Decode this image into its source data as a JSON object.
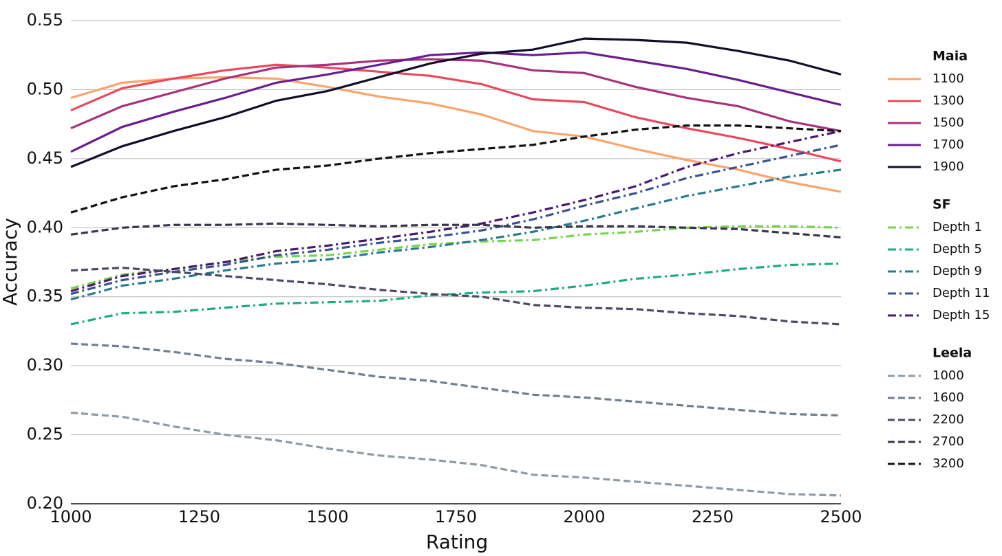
{
  "chart_data": {
    "type": "line",
    "x_label": "Rating",
    "y_label": "Accuracy",
    "x": [
      1000,
      1100,
      1200,
      1300,
      1400,
      1500,
      1600,
      1700,
      1800,
      1900,
      2000,
      2100,
      2200,
      2300,
      2400,
      2500
    ],
    "xlim": [
      1000,
      2500
    ],
    "xticks": [
      1000,
      1250,
      1500,
      1750,
      2000,
      2250,
      2500
    ],
    "ylim": [
      0.2,
      0.55
    ],
    "yticks": [
      {
        "value": 0.2,
        "label": "0.20"
      },
      0.25,
      {
        "value": 0.3,
        "label": "0.30"
      },
      0.35,
      {
        "value": 0.4,
        "label": "0.40"
      },
      0.45,
      {
        "value": 0.5,
        "label": "0.50"
      },
      0.55
    ],
    "grid": true,
    "legend": "right",
    "series_groups": [
      {
        "name": "Maia",
        "dash": "solid",
        "series": [
          {
            "name": "1100",
            "color": "#fca46c",
            "values": [
              0.494,
              0.505,
              0.508,
              0.509,
              0.508,
              0.502,
              0.495,
              0.49,
              0.482,
              0.47,
              0.466,
              0.457,
              0.449,
              0.442,
              0.433,
              0.426
            ]
          },
          {
            "name": "1300",
            "color": "#e9495e",
            "values": [
              0.485,
              0.501,
              0.508,
              0.514,
              0.518,
              0.516,
              0.513,
              0.51,
              0.504,
              0.493,
              0.491,
              0.48,
              0.472,
              0.465,
              0.457,
              0.448
            ]
          },
          {
            "name": "1500",
            "color": "#a7327e",
            "values": [
              0.472,
              0.488,
              0.498,
              0.508,
              0.516,
              0.518,
              0.521,
              0.522,
              0.521,
              0.514,
              0.512,
              0.502,
              0.494,
              0.488,
              0.477,
              0.47
            ]
          },
          {
            "name": "1700",
            "color": "#6a1d8e",
            "values": [
              0.455,
              0.473,
              0.484,
              0.494,
              0.505,
              0.511,
              0.518,
              0.525,
              0.527,
              0.525,
              0.527,
              0.521,
              0.515,
              0.507,
              0.498,
              0.489
            ]
          },
          {
            "name": "1900",
            "color": "#120d2b",
            "values": [
              0.444,
              0.459,
              0.47,
              0.48,
              0.492,
              0.499,
              0.509,
              0.519,
              0.526,
              0.529,
              0.537,
              0.536,
              0.534,
              0.528,
              0.521,
              0.511
            ]
          }
        ]
      },
      {
        "name": "SF",
        "dash": "dashdot",
        "series": [
          {
            "name": "Depth 1",
            "color": "#7ad151",
            "values": [
              0.356,
              0.366,
              0.37,
              0.375,
              0.379,
              0.38,
              0.384,
              0.388,
              0.39,
              0.391,
              0.395,
              0.397,
              0.4,
              0.401,
              0.401,
              0.4
            ]
          },
          {
            "name": "Depth 5",
            "color": "#22a884",
            "values": [
              0.33,
              0.338,
              0.339,
              0.342,
              0.345,
              0.346,
              0.347,
              0.351,
              0.353,
              0.354,
              0.358,
              0.363,
              0.366,
              0.37,
              0.373,
              0.374
            ]
          },
          {
            "name": "Depth 9",
            "color": "#2a788e",
            "values": [
              0.348,
              0.358,
              0.363,
              0.369,
              0.374,
              0.377,
              0.382,
              0.386,
              0.391,
              0.397,
              0.405,
              0.414,
              0.423,
              0.43,
              0.437,
              0.442
            ]
          },
          {
            "name": "Depth 11",
            "color": "#3b528b",
            "values": [
              0.352,
              0.362,
              0.368,
              0.373,
              0.38,
              0.384,
              0.389,
              0.393,
              0.398,
              0.406,
              0.416,
              0.425,
              0.436,
              0.444,
              0.452,
              0.46
            ]
          },
          {
            "name": "Depth 15",
            "color": "#48186a",
            "values": [
              0.354,
              0.365,
              0.37,
              0.375,
              0.383,
              0.387,
              0.392,
              0.397,
              0.403,
              0.411,
              0.42,
              0.43,
              0.444,
              0.454,
              0.462,
              0.47
            ]
          }
        ]
      },
      {
        "name": "Leela",
        "dash": "dashed",
        "series": [
          {
            "name": "1000",
            "color": "#8c9ba7",
            "values": [
              0.266,
              0.263,
              0.256,
              0.25,
              0.246,
              0.24,
              0.235,
              0.232,
              0.228,
              0.221,
              0.219,
              0.216,
              0.213,
              0.21,
              0.207,
              0.206
            ]
          },
          {
            "name": "1600",
            "color": "#6f7f8f",
            "values": [
              0.316,
              0.314,
              0.31,
              0.305,
              0.302,
              0.297,
              0.292,
              0.289,
              0.284,
              0.279,
              0.277,
              0.274,
              0.271,
              0.268,
              0.265,
              0.264
            ]
          },
          {
            "name": "2200",
            "color": "#4a4a64",
            "values": [
              0.369,
              0.371,
              0.368,
              0.365,
              0.362,
              0.359,
              0.355,
              0.352,
              0.35,
              0.344,
              0.342,
              0.341,
              0.338,
              0.336,
              0.332,
              0.33
            ]
          },
          {
            "name": "2700",
            "color": "#36364c",
            "values": [
              0.395,
              0.4,
              0.402,
              0.402,
              0.403,
              0.402,
              0.401,
              0.402,
              0.402,
              0.4,
              0.401,
              0.401,
              0.4,
              0.399,
              0.396,
              0.393
            ]
          },
          {
            "name": "3200",
            "color": "#111111",
            "values": [
              0.411,
              0.422,
              0.43,
              0.435,
              0.442,
              0.445,
              0.45,
              0.454,
              0.457,
              0.46,
              0.466,
              0.471,
              0.474,
              0.474,
              0.472,
              0.47
            ]
          }
        ]
      }
    ]
  }
}
